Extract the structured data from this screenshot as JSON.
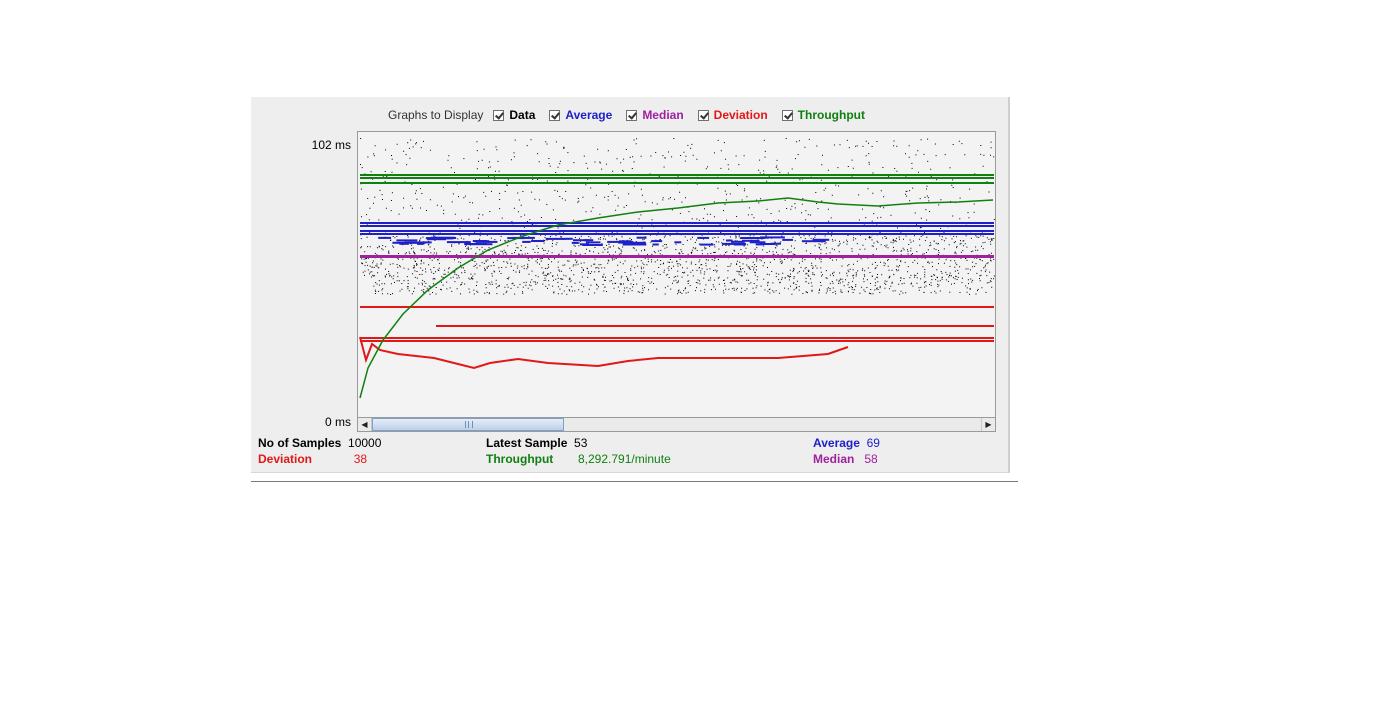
{
  "controls": {
    "label": "Graphs to Display",
    "checkboxes": [
      {
        "label": "Data",
        "checked": true,
        "color": "#000000"
      },
      {
        "label": "Average",
        "checked": true,
        "color": "#2020c8"
      },
      {
        "label": "Median",
        "checked": true,
        "color": "#a020a0"
      },
      {
        "label": "Deviation",
        "checked": true,
        "color": "#e01818"
      },
      {
        "label": "Throughput",
        "checked": true,
        "color": "#108010"
      }
    ]
  },
  "graph": {
    "y_max_label": "102  ms",
    "y_min_label": "0  ms"
  },
  "chart_data": {
    "type": "scatter",
    "ylim": [
      0,
      102
    ],
    "yunit": "ms",
    "series": [
      {
        "name": "Data",
        "color": "#000000"
      },
      {
        "name": "Average",
        "color": "#2020c8"
      },
      {
        "name": "Median",
        "color": "#a020a0"
      },
      {
        "name": "Deviation",
        "color": "#e01818"
      },
      {
        "name": "Throughput",
        "color": "#108010"
      }
    ]
  },
  "stats": {
    "samples_label": "No of Samples",
    "samples_value": "10000",
    "latest_label": "Latest Sample",
    "latest_value": "53",
    "average_label": "Average",
    "average_value": "69",
    "deviation_label": "Deviation",
    "deviation_value": "38",
    "throughput_label": "Throughput",
    "throughput_value": "8,292.791/minute",
    "median_label": "Median",
    "median_value": "58"
  }
}
